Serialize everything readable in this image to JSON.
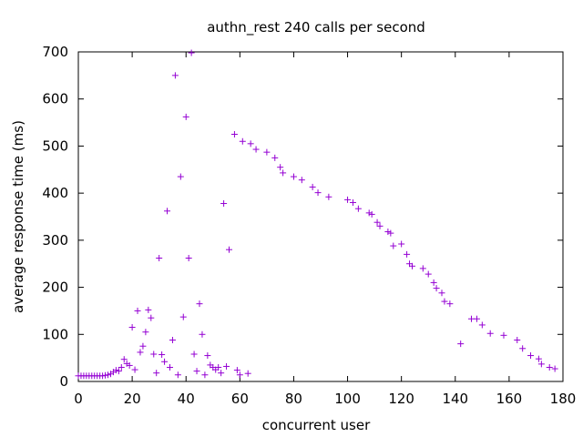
{
  "chart_data": {
    "type": "scatter",
    "title": "authn_rest 240 calls per second",
    "xlabel": "concurrent user",
    "ylabel": "average response time (ms)",
    "xlim": [
      0,
      180
    ],
    "ylim": [
      0,
      700
    ],
    "xticks": [
      0,
      20,
      40,
      60,
      80,
      100,
      120,
      140,
      160,
      180
    ],
    "yticks": [
      0,
      100,
      200,
      300,
      400,
      500,
      600,
      700
    ],
    "grid": false,
    "marker": "plus",
    "color": "#9400d3",
    "points": [
      [
        0,
        12
      ],
      [
        1,
        12
      ],
      [
        2,
        12
      ],
      [
        3,
        12
      ],
      [
        4,
        12
      ],
      [
        5,
        12
      ],
      [
        6,
        12
      ],
      [
        7,
        12
      ],
      [
        8,
        12
      ],
      [
        9,
        12
      ],
      [
        10,
        13
      ],
      [
        11,
        14
      ],
      [
        12,
        16
      ],
      [
        13,
        20
      ],
      [
        14,
        24
      ],
      [
        15,
        22
      ],
      [
        16,
        30
      ],
      [
        17,
        47
      ],
      [
        18,
        38
      ],
      [
        19,
        34
      ],
      [
        20,
        115
      ],
      [
        21,
        25
      ],
      [
        22,
        150
      ],
      [
        23,
        62
      ],
      [
        24,
        75
      ],
      [
        25,
        105
      ],
      [
        26,
        152
      ],
      [
        27,
        135
      ],
      [
        28,
        58
      ],
      [
        29,
        18
      ],
      [
        30,
        262
      ],
      [
        31,
        57
      ],
      [
        32,
        42
      ],
      [
        33,
        362
      ],
      [
        34,
        30
      ],
      [
        35,
        88
      ],
      [
        36,
        650
      ],
      [
        37,
        14
      ],
      [
        38,
        435
      ],
      [
        39,
        137
      ],
      [
        40,
        562
      ],
      [
        41,
        262
      ],
      [
        42,
        698
      ],
      [
        43,
        58
      ],
      [
        44,
        22
      ],
      [
        45,
        165
      ],
      [
        46,
        100
      ],
      [
        47,
        14
      ],
      [
        48,
        55
      ],
      [
        49,
        35
      ],
      [
        50,
        30
      ],
      [
        51,
        25
      ],
      [
        52,
        30
      ],
      [
        53,
        18
      ],
      [
        54,
        378
      ],
      [
        55,
        32
      ],
      [
        56,
        280
      ],
      [
        58,
        525
      ],
      [
        59,
        24
      ],
      [
        60,
        14
      ],
      [
        61,
        510
      ],
      [
        63,
        17
      ],
      [
        64,
        505
      ],
      [
        66,
        493
      ],
      [
        70,
        487
      ],
      [
        73,
        475
      ],
      [
        75,
        455
      ],
      [
        76,
        443
      ],
      [
        80,
        435
      ],
      [
        83,
        428
      ],
      [
        87,
        413
      ],
      [
        89,
        401
      ],
      [
        93,
        392
      ],
      [
        100,
        386
      ],
      [
        102,
        380
      ],
      [
        104,
        367
      ],
      [
        108,
        358
      ],
      [
        109,
        355
      ],
      [
        111,
        338
      ],
      [
        112,
        330
      ],
      [
        115,
        318
      ],
      [
        116,
        315
      ],
      [
        117,
        288
      ],
      [
        120,
        292
      ],
      [
        122,
        270
      ],
      [
        123,
        250
      ],
      [
        124,
        245
      ],
      [
        128,
        240
      ],
      [
        130,
        228
      ],
      [
        132,
        210
      ],
      [
        133,
        198
      ],
      [
        135,
        188
      ],
      [
        136,
        170
      ],
      [
        138,
        165
      ],
      [
        142,
        80
      ],
      [
        146,
        133
      ],
      [
        148,
        133
      ],
      [
        150,
        120
      ],
      [
        153,
        102
      ],
      [
        158,
        98
      ],
      [
        163,
        88
      ],
      [
        165,
        70
      ],
      [
        168,
        55
      ],
      [
        171,
        48
      ],
      [
        172,
        37
      ],
      [
        175,
        30
      ],
      [
        177,
        27
      ]
    ]
  }
}
